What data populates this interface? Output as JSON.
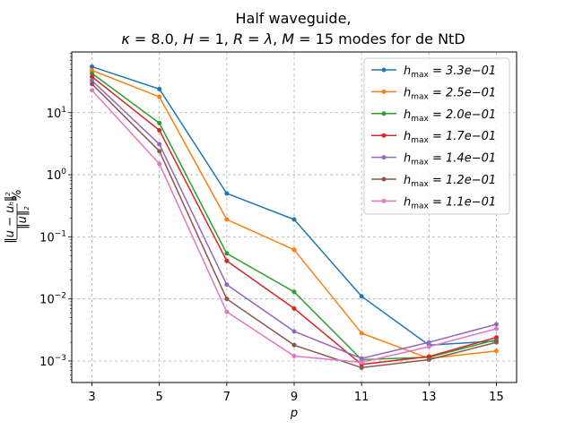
{
  "chart_data": {
    "type": "line",
    "title_line1": "Half waveguide,",
    "title_line2": "κ = 8.0, H = 1, R = λ, M = 15 modes for de NtD",
    "xlabel": "p",
    "ylabel": "‖u − u_h‖² / ‖u‖² %",
    "x": [
      3,
      5,
      7,
      9,
      11,
      13,
      15
    ],
    "x_ticks": [
      "3",
      "5",
      "7",
      "9",
      "11",
      "13",
      "15"
    ],
    "xlim": [
      2.4,
      15.6
    ],
    "yscale": "log",
    "ylim": [
      0.00045,
      95
    ],
    "y_ticks": [
      {
        "value": 0.001,
        "base": "10",
        "exp": "−3"
      },
      {
        "value": 0.01,
        "base": "10",
        "exp": "−2"
      },
      {
        "value": 0.1,
        "base": "10",
        "exp": "−1"
      },
      {
        "value": 1,
        "base": "10",
        "exp": "0"
      },
      {
        "value": 10,
        "base": "10",
        "exp": "1"
      }
    ],
    "grid": true,
    "legend_position": "upper-right",
    "series": [
      {
        "name": "3.3e−01",
        "color": "#1f77b4",
        "values": [
          55,
          24,
          0.5,
          0.19,
          0.011,
          0.0018,
          0.0021
        ]
      },
      {
        "name": "2.5e−01",
        "color": "#ff7f0e",
        "values": [
          48,
          18,
          0.19,
          0.062,
          0.0028,
          0.0011,
          0.00145
        ]
      },
      {
        "name": "2.0e−01",
        "color": "#2ca02c",
        "values": [
          43,
          6.8,
          0.054,
          0.013,
          0.00105,
          0.00115,
          0.0022
        ]
      },
      {
        "name": "1.7e−01",
        "color": "#d62728",
        "values": [
          38,
          5.2,
          0.041,
          0.007,
          0.00088,
          0.00118,
          0.0024
        ]
      },
      {
        "name": "1.4e−01",
        "color": "#9467bd",
        "values": [
          33,
          3.1,
          0.017,
          0.003,
          0.0011,
          0.002,
          0.0039
        ]
      },
      {
        "name": "1.2e−01",
        "color": "#8c564b",
        "values": [
          29,
          2.4,
          0.01,
          0.0018,
          0.00078,
          0.00105,
          0.002
        ]
      },
      {
        "name": "1.1e−01",
        "color": "#e377c2",
        "values": [
          23,
          1.5,
          0.0062,
          0.0012,
          0.00095,
          0.0017,
          0.0033
        ]
      }
    ],
    "legend_label_prefix": "h",
    "legend_label_sub": "max",
    "legend_label_eq": " = "
  }
}
